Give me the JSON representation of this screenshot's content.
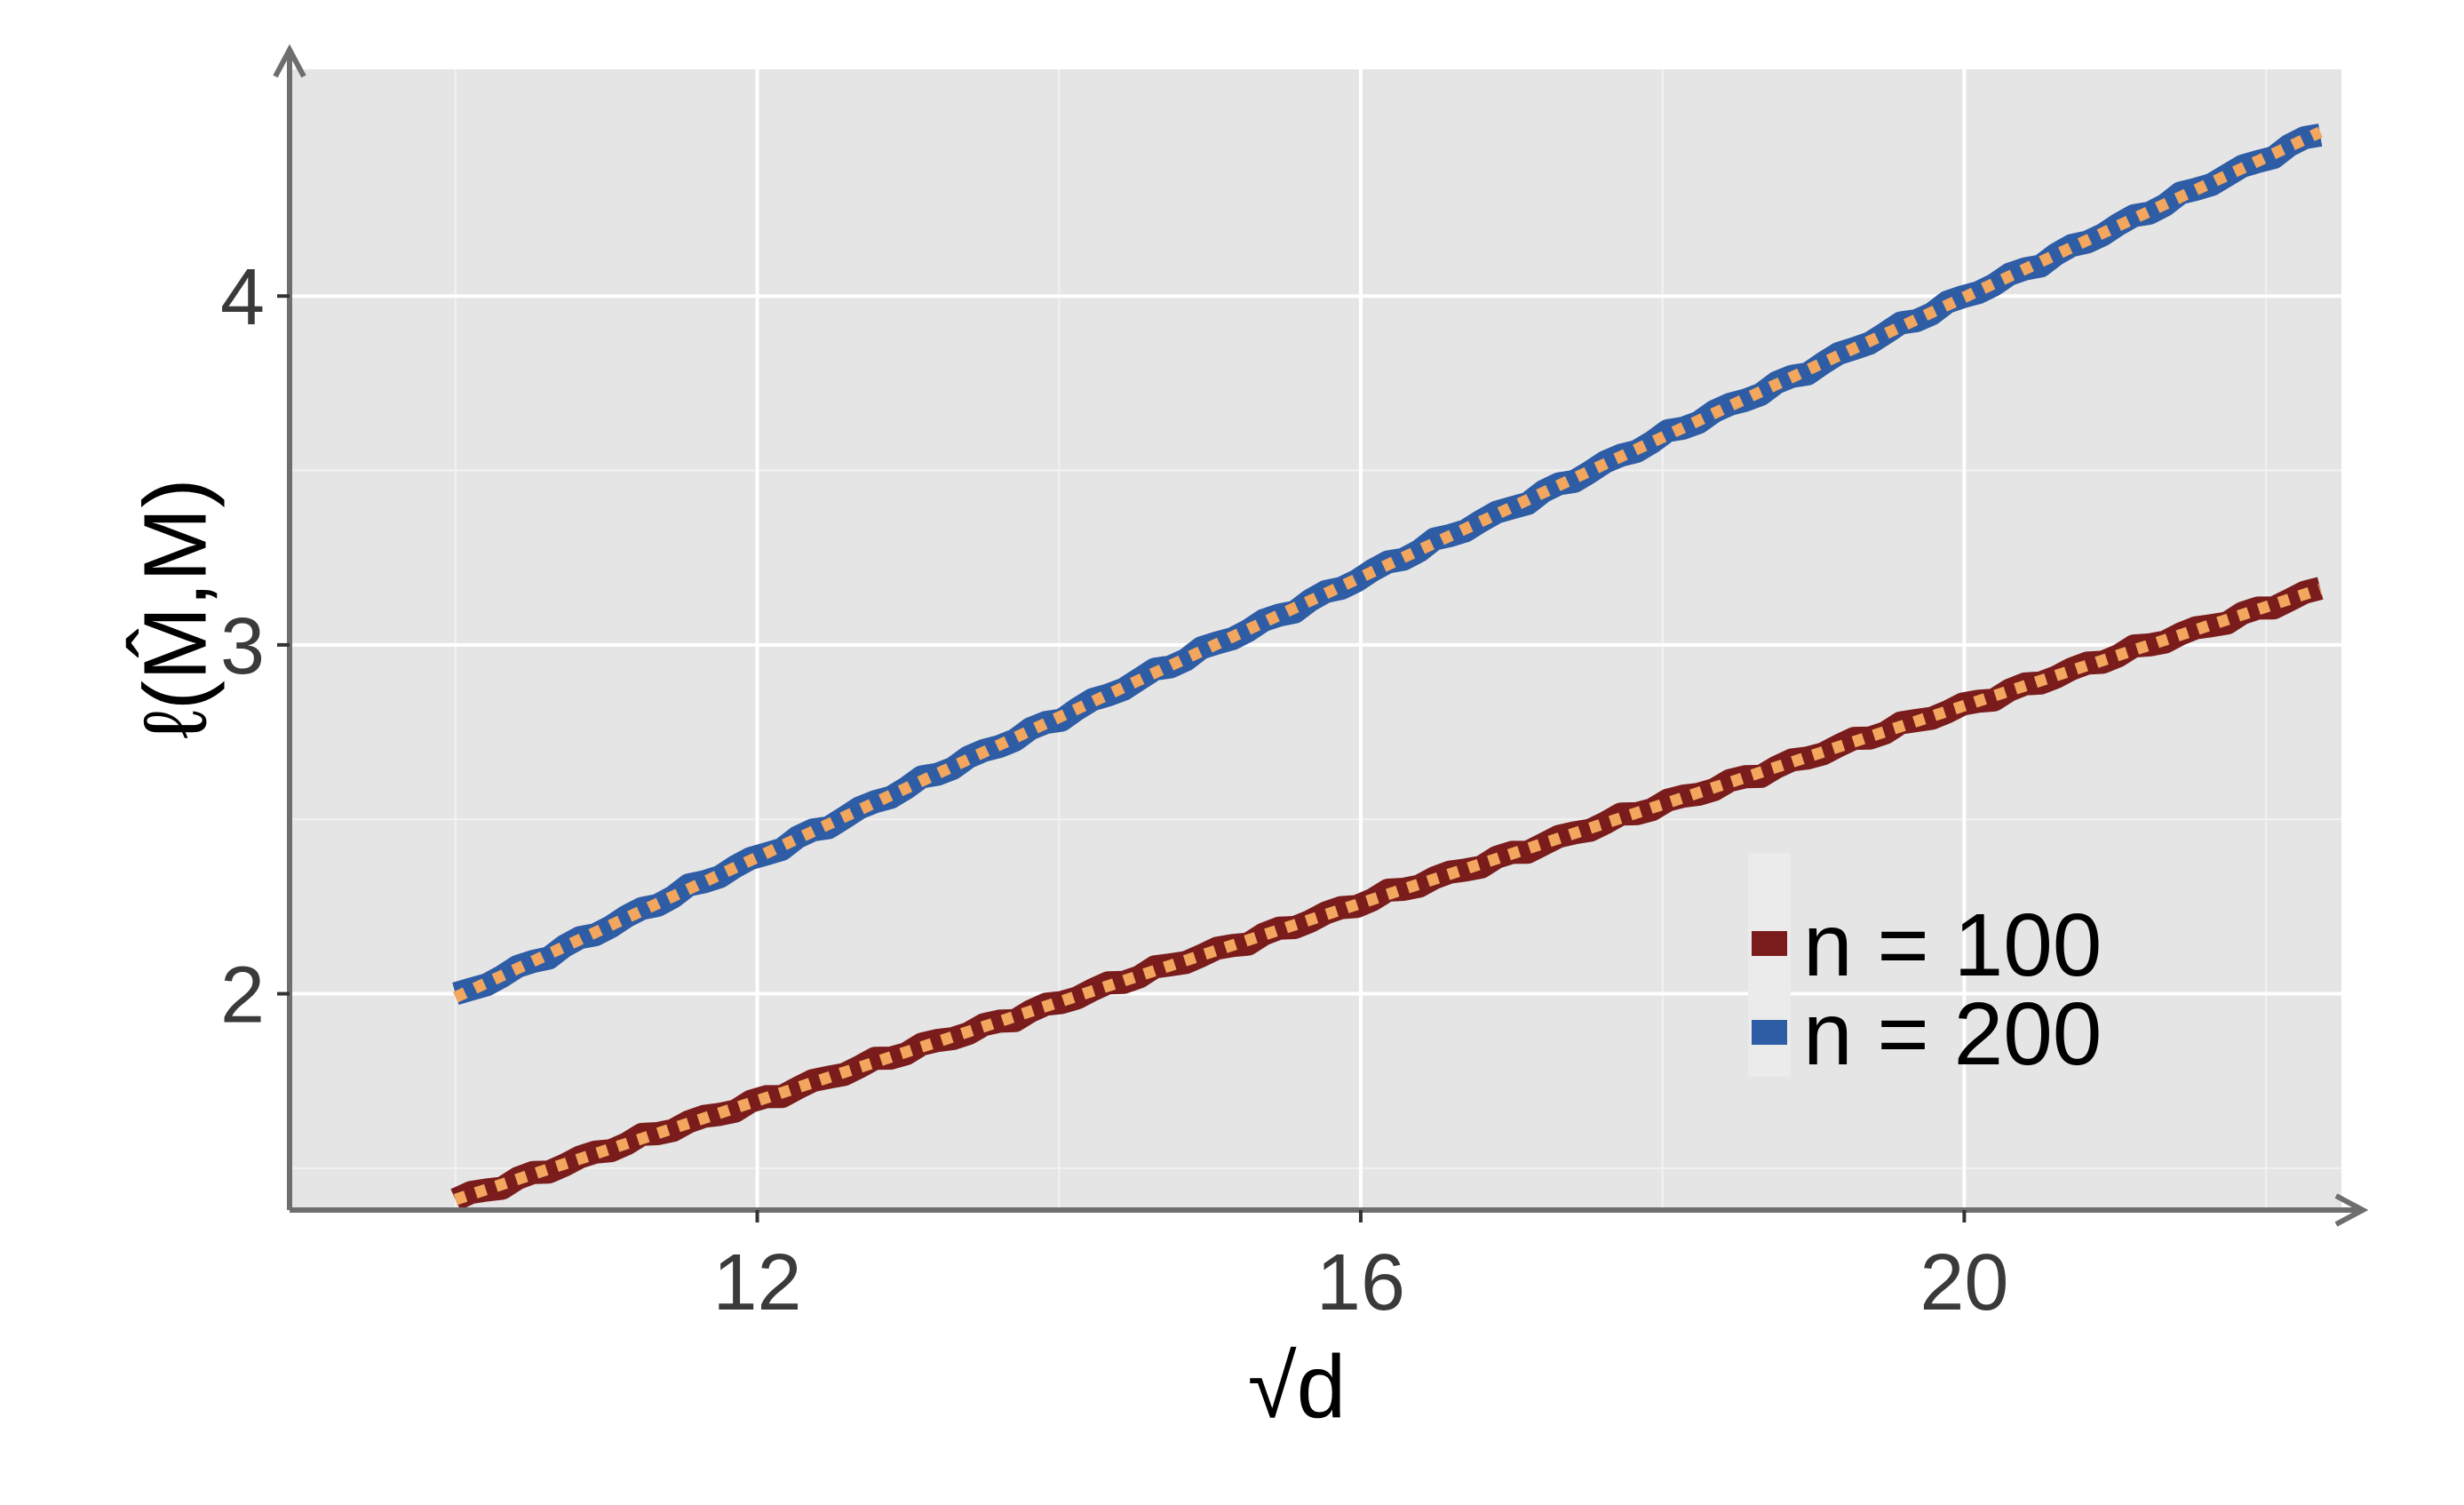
{
  "chart_data": {
    "type": "line",
    "xlabel": "√d",
    "ylabel": "ℓ(M̂,M)",
    "xlim": [
      8.9,
      22.5
    ],
    "ylim": [
      1.38,
      4.65
    ],
    "x_ticks": [
      12,
      16,
      20
    ],
    "x_tick_labels": [
      "12",
      "16",
      "20"
    ],
    "y_ticks": [
      2,
      3,
      4
    ],
    "y_tick_labels": [
      "2",
      "3",
      "4"
    ],
    "x_minor_gridlines": [
      10,
      14,
      18,
      22
    ],
    "y_minor_gridlines": [
      1.5,
      2.5,
      3.5
    ],
    "grid": true,
    "legend_position": "bottom-right",
    "series": [
      {
        "name": "n = 100",
        "x_start": 10,
        "x_end": 22.36,
        "y_start": 1.41,
        "y_end": 3.16
      },
      {
        "name": "n = 200",
        "x_start": 10,
        "x_end": 22.36,
        "y_start": 1.99,
        "y_end": 4.47
      }
    ],
    "overlay": {
      "description_style": "dotted",
      "color": "#f2a65e"
    }
  },
  "colors": {
    "panel_bg": "#e5e5e5",
    "grid_major": "#ffffff",
    "axis": "#6e6e6e",
    "series_100": "#7a1c1c",
    "series_200": "#2e5da5",
    "overlay": "#f2a65e"
  }
}
